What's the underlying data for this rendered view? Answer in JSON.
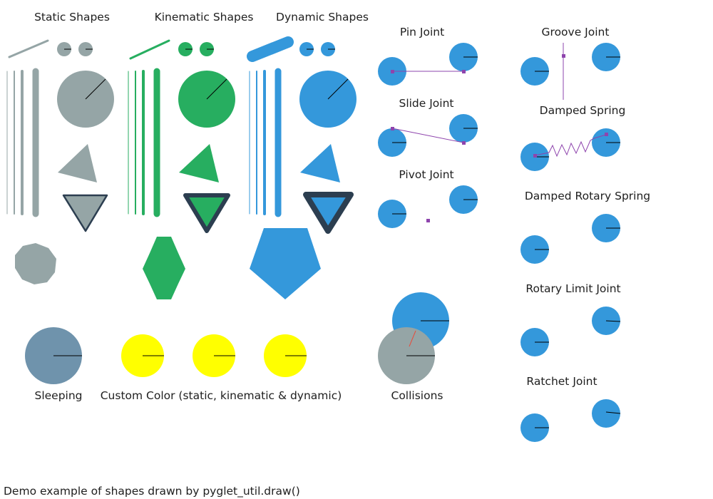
{
  "window": {
    "caption": "Demo example of shapes drawn by pyglet_util.draw()"
  },
  "labels": {
    "static": "Static Shapes",
    "kinematic": "Kinematic Shapes",
    "dynamic": "Dynamic Shapes",
    "pin": "Pin Joint",
    "slide": "Slide Joint",
    "pivot": "Pivot Joint",
    "groove": "Groove Joint",
    "spring": "Damped Spring",
    "rotary_spring": "Damped Rotary Spring",
    "rotary_limit": "Rotary Limit Joint",
    "ratchet": "Ratchet Joint",
    "sleeping": "Sleeping",
    "custom": "Custom Color (static, kinematic & dynamic)",
    "collisions": "Collisions"
  },
  "colors": {
    "static": "#95a5a6",
    "kinematic": "#27ae60",
    "dynamic": "#3498db",
    "sleeping": "#6f93ac",
    "custom": "#ffff00",
    "outline": "#2c3e50",
    "constraint": "#8e44ad",
    "collision_point": "#e74c3c",
    "line": "#000000"
  },
  "icons": {
    "circle": "circle-shape",
    "segment": "segment-shape",
    "poly": "polygon-shape",
    "joint_anchor": "constraint-anchor-dot"
  }
}
